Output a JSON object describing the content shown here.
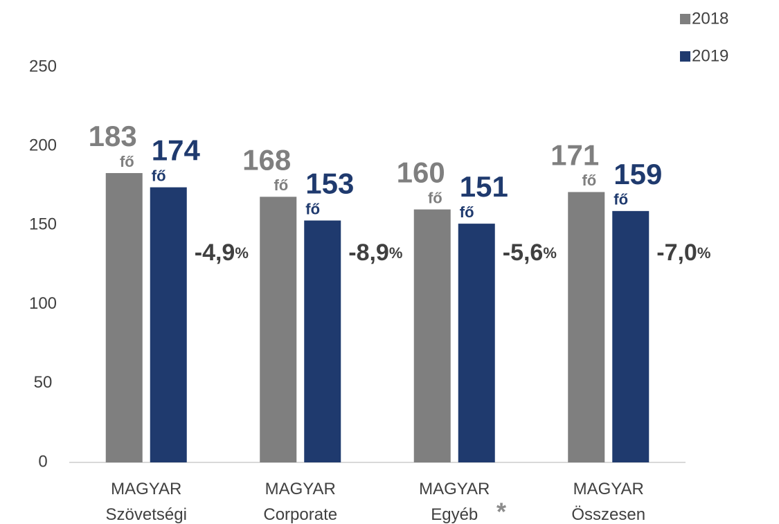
{
  "chart_data": {
    "type": "bar",
    "categories": [
      "MAGYAR Szövetségi",
      "MAGYAR Corporate",
      "MAGYAR Egyéb",
      "MAGYAR Összesen"
    ],
    "series": [
      {
        "name": "2018",
        "color": "#7f7f7f",
        "values": [
          183,
          168,
          160,
          171
        ]
      },
      {
        "name": "2019",
        "color": "#1f3a6e",
        "values": [
          174,
          153,
          151,
          159
        ]
      }
    ],
    "unit": "fő",
    "annotations": [
      "-4,9%",
      "-8,9%",
      "-5,6%",
      "-7,0%"
    ],
    "footnote_mark": "*",
    "ylim": [
      0,
      250
    ],
    "yticks": [
      0,
      50,
      100,
      150,
      200,
      250
    ],
    "grid": false,
    "legend": "top-right"
  }
}
